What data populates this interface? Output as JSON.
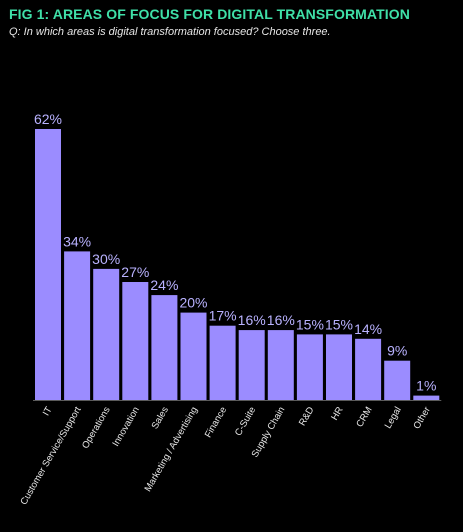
{
  "header": {
    "title": "FIG 1: AREAS OF FOCUS FOR DIGITAL TRANSFORMATION",
    "subtitle": "Q: In which areas is digital transformation focused? Choose three."
  },
  "colors": {
    "background": "#000000",
    "title": "#3fe0a8",
    "bar": "#9b8cff",
    "value_label": "#b9b2ff",
    "category_label": "#e6e6e6"
  },
  "chart_data": {
    "type": "bar",
    "categories": [
      "IT",
      "Customer Service/Support",
      "Operations",
      "Innovation",
      "Sales",
      "Marketing / Advertising",
      "Finance",
      "C-Suite",
      "Supply Chain",
      "R&D",
      "HR",
      "CRM",
      "Legal",
      "Other"
    ],
    "values": [
      62,
      34,
      30,
      27,
      24,
      20,
      17,
      16,
      16,
      15,
      15,
      14,
      9,
      1
    ],
    "value_labels": [
      "62%",
      "34%",
      "30%",
      "27%",
      "24%",
      "20%",
      "17%",
      "16%",
      "16%",
      "15%",
      "15%",
      "14%",
      "9%",
      "1%"
    ],
    "ylim": [
      0,
      62
    ],
    "grid": false,
    "legend": "none",
    "category_label_rotation": -60
  }
}
